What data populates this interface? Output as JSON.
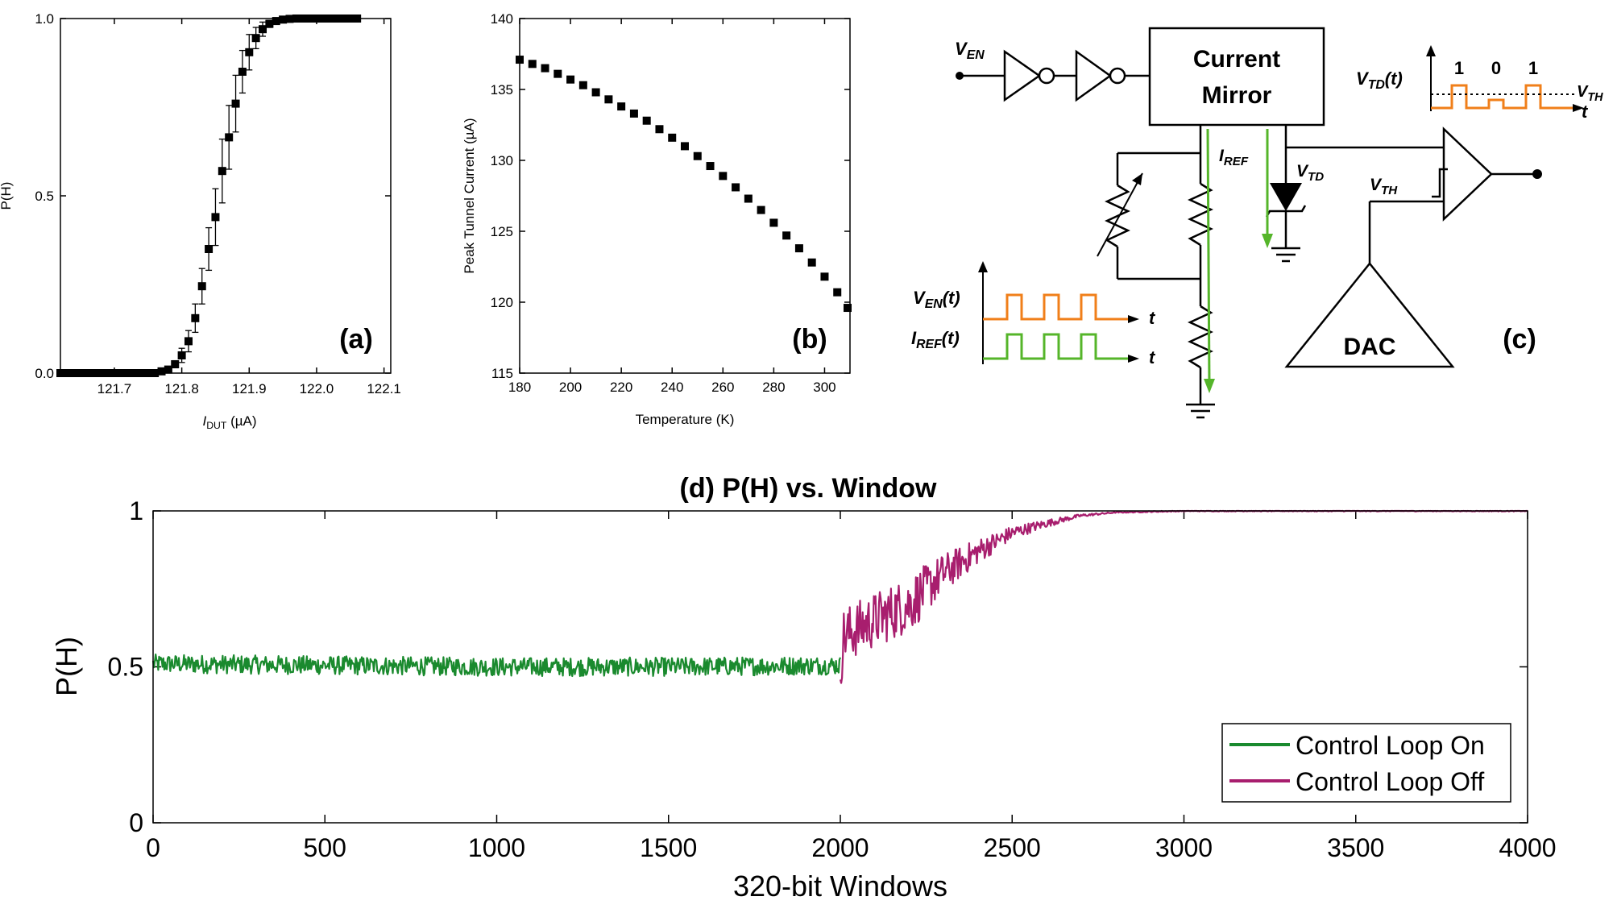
{
  "chart_data": [
    {
      "id": "a",
      "type": "scatter",
      "panel_label": "(a)",
      "ylabel": "P(H)",
      "xlabel": "I",
      "xlabel_sub": "DUT",
      "xlabel_unit": " (µA)",
      "xlim": [
        121.62,
        122.11
      ],
      "ylim": [
        0,
        1
      ],
      "xticks": [
        121.7,
        121.8,
        121.9,
        122.0,
        122.1
      ],
      "xtick_labels": [
        "121.7",
        "121.8",
        "121.9",
        "122.0",
        "122.1"
      ],
      "yticks": [
        0,
        0.5,
        1
      ],
      "ytick_labels": [
        "0.0",
        "0.5",
        "1.0"
      ],
      "points": [
        {
          "x": 121.62,
          "y": 0.0,
          "err": 0.0
        },
        {
          "x": 121.63,
          "y": 0.0,
          "err": 0.0
        },
        {
          "x": 121.64,
          "y": 0.0,
          "err": 0.0
        },
        {
          "x": 121.65,
          "y": 0.0,
          "err": 0.0
        },
        {
          "x": 121.66,
          "y": 0.0,
          "err": 0.0
        },
        {
          "x": 121.67,
          "y": 0.0,
          "err": 0.0
        },
        {
          "x": 121.68,
          "y": 0.0,
          "err": 0.0
        },
        {
          "x": 121.69,
          "y": 0.0,
          "err": 0.0
        },
        {
          "x": 121.7,
          "y": 0.0,
          "err": 0.0
        },
        {
          "x": 121.71,
          "y": 0.0,
          "err": 0.0
        },
        {
          "x": 121.72,
          "y": 0.0,
          "err": 0.0
        },
        {
          "x": 121.73,
          "y": 0.0,
          "err": 0.0
        },
        {
          "x": 121.74,
          "y": 0.0,
          "err": 0.0
        },
        {
          "x": 121.75,
          "y": 0.0,
          "err": 0.0
        },
        {
          "x": 121.76,
          "y": 0.0,
          "err": 0.0
        },
        {
          "x": 121.77,
          "y": 0.005,
          "err": 0.004
        },
        {
          "x": 121.78,
          "y": 0.01,
          "err": 0.006
        },
        {
          "x": 121.79,
          "y": 0.025,
          "err": 0.01
        },
        {
          "x": 121.8,
          "y": 0.05,
          "err": 0.02
        },
        {
          "x": 121.81,
          "y": 0.09,
          "err": 0.03
        },
        {
          "x": 121.82,
          "y": 0.155,
          "err": 0.04
        },
        {
          "x": 121.83,
          "y": 0.245,
          "err": 0.05
        },
        {
          "x": 121.84,
          "y": 0.35,
          "err": 0.06
        },
        {
          "x": 121.85,
          "y": 0.44,
          "err": 0.08
        },
        {
          "x": 121.86,
          "y": 0.57,
          "err": 0.09
        },
        {
          "x": 121.87,
          "y": 0.665,
          "err": 0.09
        },
        {
          "x": 121.88,
          "y": 0.76,
          "err": 0.08
        },
        {
          "x": 121.89,
          "y": 0.85,
          "err": 0.06
        },
        {
          "x": 121.9,
          "y": 0.905,
          "err": 0.05
        },
        {
          "x": 121.91,
          "y": 0.945,
          "err": 0.03
        },
        {
          "x": 121.92,
          "y": 0.97,
          "err": 0.02
        },
        {
          "x": 121.93,
          "y": 0.985,
          "err": 0.01
        },
        {
          "x": 121.94,
          "y": 0.993,
          "err": 0.005
        },
        {
          "x": 121.95,
          "y": 0.997,
          "err": 0.003
        },
        {
          "x": 121.96,
          "y": 0.999,
          "err": 0.0
        },
        {
          "x": 121.97,
          "y": 1.0,
          "err": 0.0
        },
        {
          "x": 121.98,
          "y": 1.0,
          "err": 0.0
        },
        {
          "x": 121.99,
          "y": 1.0,
          "err": 0.0
        },
        {
          "x": 122.0,
          "y": 1.0,
          "err": 0.0
        },
        {
          "x": 122.01,
          "y": 1.0,
          "err": 0.0
        },
        {
          "x": 122.02,
          "y": 1.0,
          "err": 0.0
        },
        {
          "x": 122.03,
          "y": 1.0,
          "err": 0.0
        },
        {
          "x": 122.04,
          "y": 1.0,
          "err": 0.0
        },
        {
          "x": 122.05,
          "y": 1.0,
          "err": 0.0
        },
        {
          "x": 122.06,
          "y": 1.0,
          "err": 0.0
        }
      ]
    },
    {
      "id": "b",
      "type": "scatter",
      "panel_label": "(b)",
      "ylabel": "Peak Tunnel Current (µA)",
      "xlabel": "Temperature (K)",
      "xlim": [
        180,
        310
      ],
      "ylim": [
        115,
        140
      ],
      "xticks": [
        180,
        200,
        220,
        240,
        260,
        280,
        300
      ],
      "yticks": [
        115,
        120,
        125,
        130,
        135,
        140
      ],
      "x": [
        180,
        185,
        190,
        195,
        200,
        205,
        210,
        215,
        220,
        225,
        230,
        235,
        240,
        245,
        250,
        255,
        260,
        265,
        270,
        275,
        280,
        285,
        290,
        295,
        300,
        305,
        310
      ],
      "y": [
        137.1,
        136.8,
        136.5,
        136.1,
        135.7,
        135.3,
        134.8,
        134.3,
        133.8,
        133.3,
        132.8,
        132.2,
        131.6,
        131.0,
        130.3,
        129.6,
        128.9,
        128.1,
        127.3,
        126.5,
        125.6,
        124.7,
        123.8,
        122.8,
        121.8,
        120.7,
        119.6
      ]
    },
    {
      "id": "d",
      "type": "line",
      "panel_label": "(d)",
      "title": "(d) P(H) vs. Window",
      "ylabel": "P(H)",
      "xlabel": "320-bit Windows",
      "xlim": [
        0,
        4000
      ],
      "ylim": [
        0,
        1
      ],
      "xticks": [
        0,
        500,
        1000,
        1500,
        2000,
        2500,
        3000,
        3500,
        4000
      ],
      "yticks": [
        0,
        0.5,
        1
      ],
      "legend_position": "bottom-right",
      "series": [
        {
          "name": "Control Loop On",
          "color": "#1a8a2e",
          "x_range": [
            0,
            2000
          ],
          "trend_x": [
            0,
            500,
            1000,
            1500,
            2000
          ],
          "trend_y": [
            0.51,
            0.505,
            0.5,
            0.5,
            0.505
          ],
          "noise_amplitude": 0.03
        },
        {
          "name": "Control Loop Off",
          "color": "#a81e6e",
          "x_range": [
            2000,
            4000
          ],
          "trend_x": [
            2000,
            2010,
            2100,
            2200,
            2300,
            2400,
            2500,
            2600,
            2700,
            2800,
            3000,
            3500,
            4000
          ],
          "trend_y": [
            0.5,
            0.6,
            0.65,
            0.7,
            0.8,
            0.87,
            0.93,
            0.96,
            0.985,
            0.995,
            1.0,
            1.0,
            1.0
          ],
          "noise_amplitude": 0.09
        }
      ]
    }
  ],
  "diagram_c": {
    "panel_label": "(c)",
    "current_mirror_line1": "Current",
    "current_mirror_line2": "Mirror",
    "dac_label": "DAC",
    "v_en": "V",
    "v_en_sub": "EN",
    "i_ref": "I",
    "i_ref_sub": "REF",
    "v_td": "V",
    "v_td_sub": "TD",
    "v_th": "V",
    "v_th_sub": "TH",
    "v_en_t": "V",
    "v_en_t_sub": "EN",
    "v_en_t_arg": "(t)",
    "i_ref_t": "I",
    "i_ref_t_sub": "REF",
    "i_ref_t_arg": "(t)",
    "v_td_t": "V",
    "v_td_t_sub": "TD",
    "v_td_t_arg": "(t)",
    "v_th_right": "V",
    "v_th_right_sub": "TH",
    "t_label": "t",
    "bits": [
      "1",
      "0",
      "1"
    ],
    "colors": {
      "orange": "#f07f1a",
      "green": "#55b52a"
    }
  }
}
